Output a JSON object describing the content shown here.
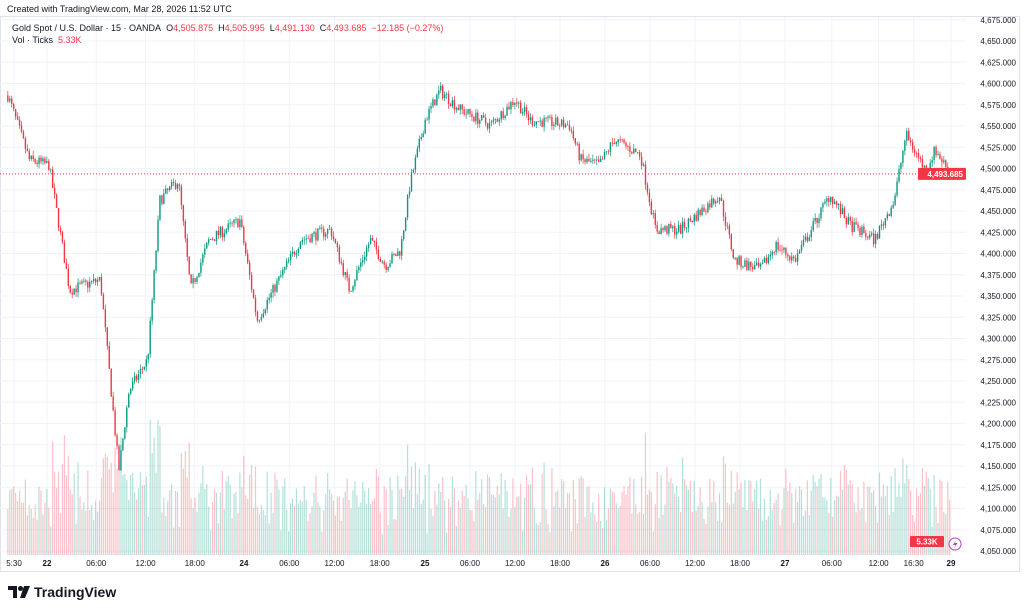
{
  "created": "Created with TradingView.com, Mar 28, 2026 11:52 UTC",
  "legend": {
    "symbol": "Gold Spot / U.S. Dollar · 15 · OANDA",
    "o_label": "O",
    "open": "4,505.875",
    "h_label": "H",
    "high": "4,505.995",
    "l_label": "L",
    "low": "4,491.130",
    "c_label": "C",
    "close": "4,493.685",
    "change": "−12.185 (−0.27%)",
    "vol_label": "Vol · Ticks",
    "vol_value": "5.33K"
  },
  "logo": "TradingView",
  "colors": {
    "up": "#089981",
    "down": "#f23645",
    "grid": "#f0f3fa"
  },
  "chart_data": {
    "type": "candlestick",
    "interval": "15",
    "ylim": [
      4050,
      4675
    ],
    "y_ticks": [
      "4,675.000",
      "4,650.000",
      "4,625.000",
      "4,600.000",
      "4,575.000",
      "4,550.000",
      "4,525.000",
      "4,500.000",
      "4,475.000",
      "4,450.000",
      "4,425.000",
      "4,400.000",
      "4,375.000",
      "4,350.000",
      "4,325.000",
      "4,300.000",
      "4,275.000",
      "4,250.000",
      "4,225.000",
      "4,200.000",
      "4,175.000",
      "4,150.000",
      "4,125.000",
      "4,100.000",
      "4,075.000",
      "4,050.000"
    ],
    "x_ticks": [
      {
        "label": "5:30",
        "time": "21 17:30"
      },
      {
        "label": "22",
        "time": "22 00:00"
      },
      {
        "label": "06:00",
        "time": "22 06:00"
      },
      {
        "label": "12:00",
        "time": "22 12:00"
      },
      {
        "label": "18:00",
        "time": "22 18:00"
      },
      {
        "label": "24",
        "time": "24 00:00"
      },
      {
        "label": "06:00",
        "time": "24 06:00"
      },
      {
        "label": "12:00",
        "time": "24 12:00"
      },
      {
        "label": "18:00",
        "time": "24 18:00"
      },
      {
        "label": "25",
        "time": "25 00:00"
      },
      {
        "label": "06:00",
        "time": "25 06:00"
      },
      {
        "label": "12:00",
        "time": "25 12:00"
      },
      {
        "label": "18:00",
        "time": "25 18:00"
      },
      {
        "label": "26",
        "time": "26 00:00"
      },
      {
        "label": "06:00",
        "time": "26 06:00"
      },
      {
        "label": "12:00",
        "time": "26 12:00"
      },
      {
        "label": "18:00",
        "time": "26 18:00"
      },
      {
        "label": "27",
        "time": "27 00:00"
      },
      {
        "label": "06:00",
        "time": "27 06:00"
      },
      {
        "label": "12:00",
        "time": "27 12:00"
      },
      {
        "label": "16:30",
        "time": "27 16:30"
      },
      {
        "label": "29",
        "time": "27 23:00"
      }
    ],
    "price_path": [
      [
        "21 19:00",
        4586
      ],
      [
        "21 21:45",
        4510
      ],
      [
        "22 00:15",
        4504
      ],
      [
        "22 02:45",
        4357
      ],
      [
        "22 06:30",
        4369
      ],
      [
        "22 08:45",
        4145
      ],
      [
        "22 10:00",
        4239
      ],
      [
        "22 12:15",
        4275
      ],
      [
        "22 13:45",
        4463
      ],
      [
        "22 16:00",
        4486
      ],
      [
        "22 17:30",
        4357
      ],
      [
        "22 19:45",
        4416
      ],
      [
        "22 23:30",
        4439
      ],
      [
        "24 01:45",
        4322
      ],
      [
        "24 07:30",
        4416
      ],
      [
        "24 11:30",
        4428
      ],
      [
        "24 14:00",
        4357
      ],
      [
        "24 16:45",
        4416
      ],
      [
        "24 18:45",
        4386
      ],
      [
        "24 20:45",
        4404
      ],
      [
        "24 22:00",
        4481
      ],
      [
        "25 00:00",
        4557
      ],
      [
        "25 02:00",
        4592
      ],
      [
        "25 04:45",
        4569
      ],
      [
        "25 08:45",
        4551
      ],
      [
        "25 12:00",
        4581
      ],
      [
        "25 14:00",
        4557
      ],
      [
        "25 19:15",
        4551
      ],
      [
        "25 20:45",
        4510
      ],
      [
        "25 23:15",
        4504
      ],
      [
        "26 01:15",
        4534
      ],
      [
        "26 04:45",
        4516
      ],
      [
        "26 06:45",
        4428
      ],
      [
        "26 10:00",
        4428
      ],
      [
        "26 15:15",
        4469
      ],
      [
        "26 17:15",
        4392
      ],
      [
        "26 20:45",
        4381
      ],
      [
        "26 22:45",
        4410
      ],
      [
        "27 01:15",
        4392
      ],
      [
        "27 05:45",
        4469
      ],
      [
        "27 08:15",
        4434
      ],
      [
        "27 11:30",
        4416
      ],
      [
        "27 14:00",
        4463
      ],
      [
        "27 15:30",
        4540
      ],
      [
        "27 18:00",
        4498
      ],
      [
        "27 19:15",
        4522
      ],
      [
        "27 21:15",
        4493.685
      ]
    ],
    "last_price": "4,493.685",
    "last_volume": "5.33K"
  }
}
